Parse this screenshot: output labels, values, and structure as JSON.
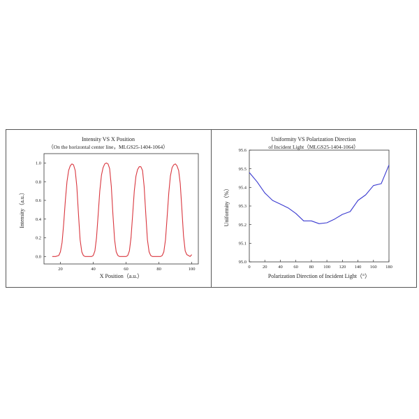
{
  "chart_data": [
    {
      "type": "line",
      "title": "Intensity VS X Position",
      "subtitle": "（On the horizontal center line，MLGS25-1404-1064）",
      "xlabel": "X Position（a.u.）",
      "ylabel": "Intensity（a.u.）",
      "xlim": [
        10,
        104
      ],
      "ylim": [
        -0.08,
        1.1
      ],
      "xticks": [
        20,
        40,
        60,
        80,
        100
      ],
      "yticks": [
        0.0,
        0.2,
        0.4,
        0.6,
        0.8,
        1.0
      ],
      "xtick_labels": [
        "20",
        "40",
        "60",
        "80",
        "100"
      ],
      "ytick_labels": [
        "0.0",
        "0.2",
        "0.4",
        "0.6",
        "0.8",
        "1.0"
      ],
      "grid": false,
      "series": [
        {
          "color": "#d9363e",
          "x": [
            15,
            17,
            19,
            20,
            21,
            22,
            23,
            24,
            25,
            26,
            27,
            28,
            29,
            30,
            31,
            32,
            33,
            34,
            35,
            37,
            39,
            40,
            41,
            42,
            43,
            44,
            45,
            46,
            47,
            48,
            49,
            50,
            51,
            52,
            53,
            54,
            55,
            56,
            58,
            60,
            61,
            62,
            63,
            64,
            65,
            66,
            67,
            68,
            69,
            70,
            71,
            72,
            73,
            74,
            75,
            76,
            77,
            79,
            81,
            82,
            83,
            84,
            85,
            86,
            87,
            88,
            89,
            90,
            91,
            92,
            93,
            94,
            95,
            96,
            97,
            98,
            99,
            100
          ],
          "y": [
            0.0,
            0.0,
            0.01,
            0.05,
            0.15,
            0.35,
            0.6,
            0.8,
            0.92,
            0.97,
            0.99,
            0.98,
            0.92,
            0.75,
            0.45,
            0.18,
            0.05,
            0.01,
            0.0,
            0.0,
            0.0,
            0.01,
            0.06,
            0.2,
            0.45,
            0.7,
            0.87,
            0.95,
            0.99,
            1.0,
            0.99,
            0.94,
            0.75,
            0.45,
            0.18,
            0.05,
            0.01,
            0.0,
            0.0,
            0.0,
            0.01,
            0.06,
            0.2,
            0.45,
            0.7,
            0.86,
            0.93,
            0.96,
            0.96,
            0.92,
            0.75,
            0.45,
            0.18,
            0.05,
            0.01,
            0.0,
            0.0,
            0.0,
            0.0,
            0.01,
            0.05,
            0.18,
            0.42,
            0.68,
            0.86,
            0.95,
            0.98,
            0.99,
            0.97,
            0.92,
            0.78,
            0.5,
            0.22,
            0.06,
            0.02,
            0.01,
            0.0,
            0.02
          ]
        }
      ]
    },
    {
      "type": "line",
      "title": "Uniformity VS Polarization Direction",
      "subtitle": "of Incident Light（MLGS25-1404-1064）",
      "xlabel": "Polarization Direction of Incident Light（°）",
      "ylabel": "Uniformity（%）",
      "xlim": [
        0,
        180
      ],
      "ylim": [
        95.0,
        95.6
      ],
      "xticks": [
        0,
        20,
        40,
        60,
        80,
        100,
        120,
        140,
        160,
        180
      ],
      "yticks": [
        95.0,
        95.1,
        95.2,
        95.3,
        95.4,
        95.5,
        95.6
      ],
      "xtick_labels": [
        "0",
        "20",
        "40",
        "60",
        "80",
        "100",
        "120",
        "140",
        "160",
        "180"
      ],
      "ytick_labels": [
        "95.0",
        "95.1",
        "95.2",
        "95.3",
        "95.4",
        "95.5",
        "95.6"
      ],
      "grid": false,
      "series": [
        {
          "color": "#3a3ad0",
          "x": [
            0,
            10,
            20,
            30,
            40,
            50,
            60,
            70,
            80,
            90,
            100,
            110,
            120,
            130,
            140,
            150,
            160,
            170,
            180
          ],
          "y": [
            95.48,
            95.43,
            95.37,
            95.33,
            95.31,
            95.29,
            95.26,
            95.22,
            95.22,
            95.205,
            95.21,
            95.23,
            95.255,
            95.27,
            95.33,
            95.36,
            95.41,
            95.42,
            95.52
          ]
        }
      ]
    }
  ]
}
